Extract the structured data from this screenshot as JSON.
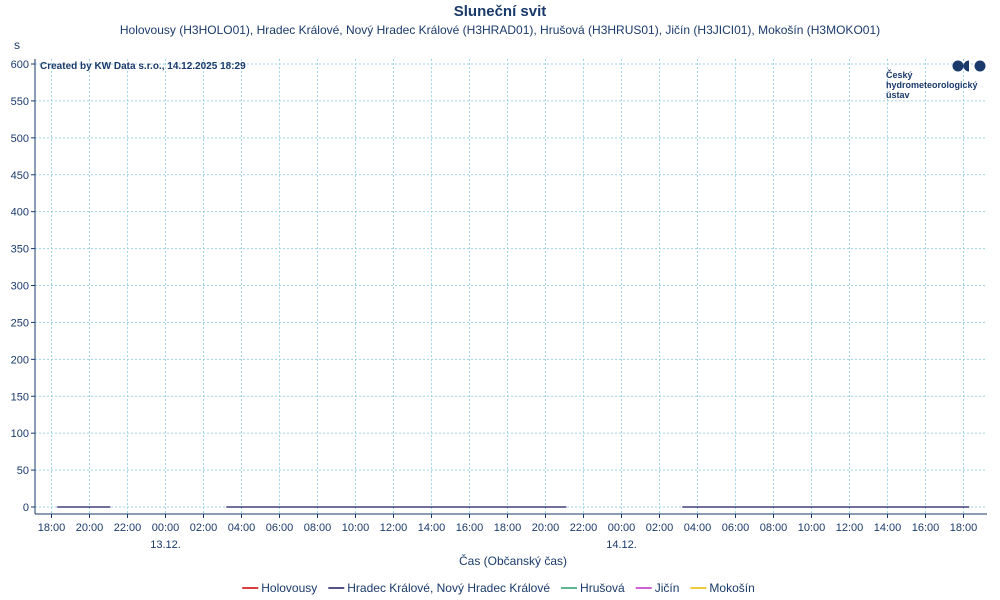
{
  "chart_data": {
    "type": "line",
    "title": "Sluneční svit",
    "subtitle": "Holovousy (H3HOLO01), Hradec Králové, Nový Hradec Králové (H3HRAD01), Hrušová (H3HRUS01), Jičín (H3JICI01), Mokošín (H3MOKO01)",
    "ylabel": "s",
    "xlabel": "Čas (Občanský čas)",
    "credit": "Created by KW Data s.r.o., 14.12.2025 18:29",
    "logo": {
      "line1": "Český",
      "line2": "hydrometeorologický",
      "line3": "ústav"
    },
    "ylim": [
      0,
      600
    ],
    "yticks": [
      0,
      50,
      100,
      150,
      200,
      250,
      300,
      350,
      400,
      450,
      500,
      550,
      600
    ],
    "x_hours": [
      18,
      20,
      22,
      24,
      26,
      28,
      30,
      32,
      34,
      36,
      38,
      40,
      42,
      44,
      46,
      48,
      50,
      52,
      54,
      56,
      58,
      60,
      62,
      64,
      66
    ],
    "x_labels": [
      "18:00",
      "20:00",
      "22:00",
      "00:00",
      "02:00",
      "04:00",
      "06:00",
      "08:00",
      "10:00",
      "12:00",
      "14:00",
      "16:00",
      "18:00",
      "20:00",
      "22:00",
      "00:00",
      "02:00",
      "04:00",
      "06:00",
      "08:00",
      "10:00",
      "12:00",
      "14:00",
      "16:00",
      "18:00"
    ],
    "date_labels": [
      {
        "hour": 24,
        "label": "13.12."
      },
      {
        "hour": 48,
        "label": "14.12."
      }
    ],
    "grid": true,
    "legend_position": "bottom-center",
    "series": [
      {
        "name": "Holovousy",
        "color": "#cc0000",
        "segments": []
      },
      {
        "name": "Hradec Králové, Nový Hradec Králové",
        "color": "#1a1a5e",
        "segments": [
          {
            "from": 18.3,
            "to": 21.1,
            "value": 0
          },
          {
            "from": 27.2,
            "to": 45.1,
            "value": 0
          },
          {
            "from": 51.2,
            "to": 66.3,
            "value": 0
          }
        ]
      },
      {
        "name": "Hrušová",
        "color": "#2a9d6f",
        "segments": []
      },
      {
        "name": "Jičín",
        "color": "#c02bc0",
        "segments": []
      },
      {
        "name": "Mokošín",
        "color": "#e8b800",
        "segments": []
      }
    ]
  }
}
